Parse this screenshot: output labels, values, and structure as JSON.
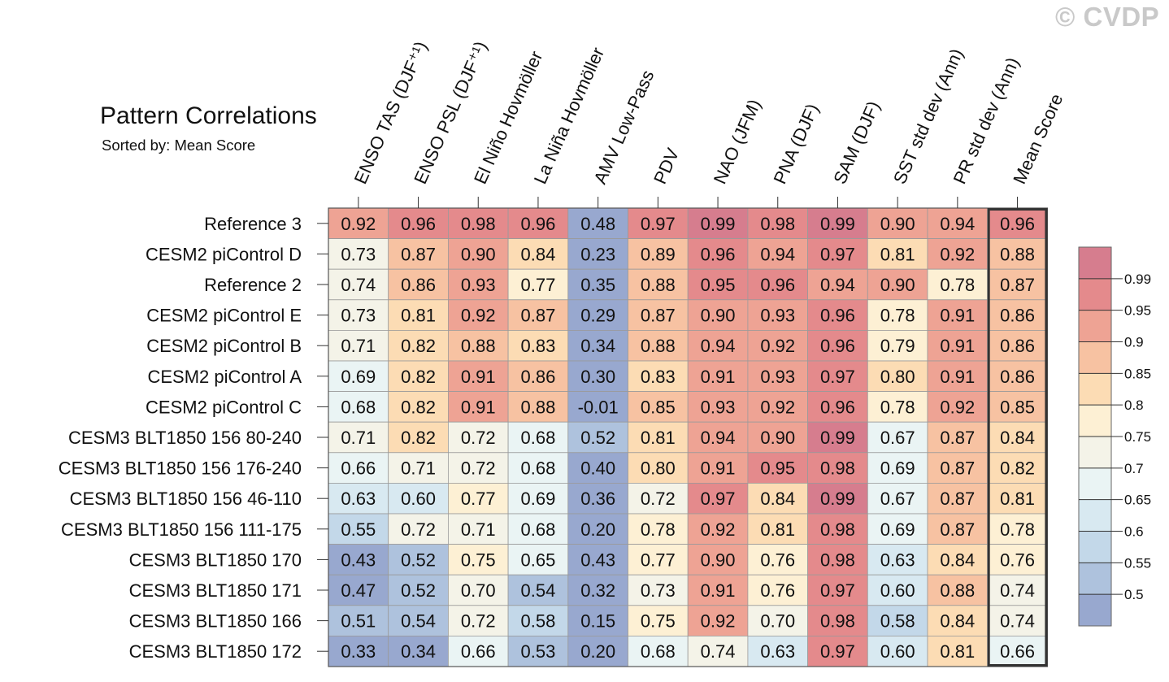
{
  "watermark": "© CVDP",
  "chart_data": {
    "type": "heatmap",
    "title": "Pattern Correlations",
    "subtitle": "Sorted by: Mean Score",
    "columns": [
      "ENSO TAS (DJF⁺¹)",
      "ENSO PSL (DJF⁺¹)",
      "El Niño Hovmöller",
      "La Niña Hovmöller",
      "AMV Low-Pass",
      "PDV",
      "NAO (JFM)",
      "PNA (DJF)",
      "SAM (DJF)",
      "SST std dev (Ann)",
      "PR std dev (Ann)",
      "Mean Score"
    ],
    "rows": [
      {
        "name": "Reference 3",
        "values": [
          "0.92",
          "0.96",
          "0.98",
          "0.96",
          "0.48",
          "0.97",
          "0.99",
          "0.98",
          "0.99",
          "0.90",
          "0.94",
          "0.96"
        ]
      },
      {
        "name": "CESM2 piControl D",
        "values": [
          "0.73",
          "0.87",
          "0.90",
          "0.84",
          "0.23",
          "0.89",
          "0.96",
          "0.94",
          "0.97",
          "0.81",
          "0.92",
          "0.88"
        ]
      },
      {
        "name": "Reference 2",
        "values": [
          "0.74",
          "0.86",
          "0.93",
          "0.77",
          "0.35",
          "0.88",
          "0.95",
          "0.96",
          "0.94",
          "0.90",
          "0.78",
          "0.87"
        ]
      },
      {
        "name": "CESM2 piControl E",
        "values": [
          "0.73",
          "0.81",
          "0.92",
          "0.87",
          "0.29",
          "0.87",
          "0.90",
          "0.93",
          "0.96",
          "0.78",
          "0.91",
          "0.86"
        ]
      },
      {
        "name": "CESM2 piControl B",
        "values": [
          "0.71",
          "0.82",
          "0.88",
          "0.83",
          "0.34",
          "0.88",
          "0.94",
          "0.92",
          "0.96",
          "0.79",
          "0.91",
          "0.86"
        ]
      },
      {
        "name": "CESM2 piControl A",
        "values": [
          "0.69",
          "0.82",
          "0.91",
          "0.86",
          "0.30",
          "0.83",
          "0.91",
          "0.93",
          "0.97",
          "0.80",
          "0.91",
          "0.86"
        ]
      },
      {
        "name": "CESM2 piControl C",
        "values": [
          "0.68",
          "0.82",
          "0.91",
          "0.88",
          "-0.01",
          "0.85",
          "0.93",
          "0.92",
          "0.96",
          "0.78",
          "0.92",
          "0.85"
        ]
      },
      {
        "name": "CESM3 BLT1850 156 80-240",
        "values": [
          "0.71",
          "0.82",
          "0.72",
          "0.68",
          "0.52",
          "0.81",
          "0.94",
          "0.90",
          "0.99",
          "0.67",
          "0.87",
          "0.84"
        ]
      },
      {
        "name": "CESM3 BLT1850 156 176-240",
        "values": [
          "0.66",
          "0.71",
          "0.72",
          "0.68",
          "0.40",
          "0.80",
          "0.91",
          "0.95",
          "0.98",
          "0.69",
          "0.87",
          "0.82"
        ]
      },
      {
        "name": "CESM3 BLT1850 156 46-110",
        "values": [
          "0.63",
          "0.60",
          "0.77",
          "0.69",
          "0.36",
          "0.72",
          "0.97",
          "0.84",
          "0.99",
          "0.67",
          "0.87",
          "0.81"
        ]
      },
      {
        "name": "CESM3 BLT1850 156 111-175",
        "values": [
          "0.55",
          "0.72",
          "0.71",
          "0.68",
          "0.20",
          "0.78",
          "0.92",
          "0.81",
          "0.98",
          "0.69",
          "0.87",
          "0.78"
        ]
      },
      {
        "name": "CESM3 BLT1850 170",
        "values": [
          "0.43",
          "0.52",
          "0.75",
          "0.65",
          "0.43",
          "0.77",
          "0.90",
          "0.76",
          "0.98",
          "0.63",
          "0.84",
          "0.76"
        ]
      },
      {
        "name": "CESM3 BLT1850 171",
        "values": [
          "0.47",
          "0.52",
          "0.70",
          "0.54",
          "0.32",
          "0.73",
          "0.91",
          "0.76",
          "0.97",
          "0.60",
          "0.88",
          "0.74"
        ]
      },
      {
        "name": "CESM3 BLT1850 166",
        "values": [
          "0.51",
          "0.54",
          "0.72",
          "0.58",
          "0.15",
          "0.75",
          "0.92",
          "0.70",
          "0.98",
          "0.58",
          "0.84",
          "0.74"
        ]
      },
      {
        "name": "CESM3 BLT1850 172",
        "values": [
          "0.33",
          "0.34",
          "0.66",
          "0.53",
          "0.20",
          "0.68",
          "0.74",
          "0.63",
          "0.97",
          "0.60",
          "0.81",
          "0.66"
        ]
      }
    ],
    "colorbar": {
      "labels": [
        "0.99",
        "0.95",
        "0.9",
        "0.85",
        "0.8",
        "0.75",
        "0.7",
        "0.65",
        "0.6",
        "0.55",
        "0.5"
      ],
      "boundaries": [
        0.5,
        0.55,
        0.6,
        0.65,
        0.7,
        0.75,
        0.8,
        0.85,
        0.9,
        0.95,
        0.99
      ],
      "colors": [
        "#98a8cf",
        "#aec2dd",
        "#c3d8e9",
        "#d8e9f1",
        "#eaf4f4",
        "#f4f3e8",
        "#fdf0d4",
        "#fcdcb4",
        "#f7c2a2",
        "#eea394",
        "#e48a8c",
        "#d67d8e"
      ]
    },
    "highlight_column": "Mean Score"
  }
}
